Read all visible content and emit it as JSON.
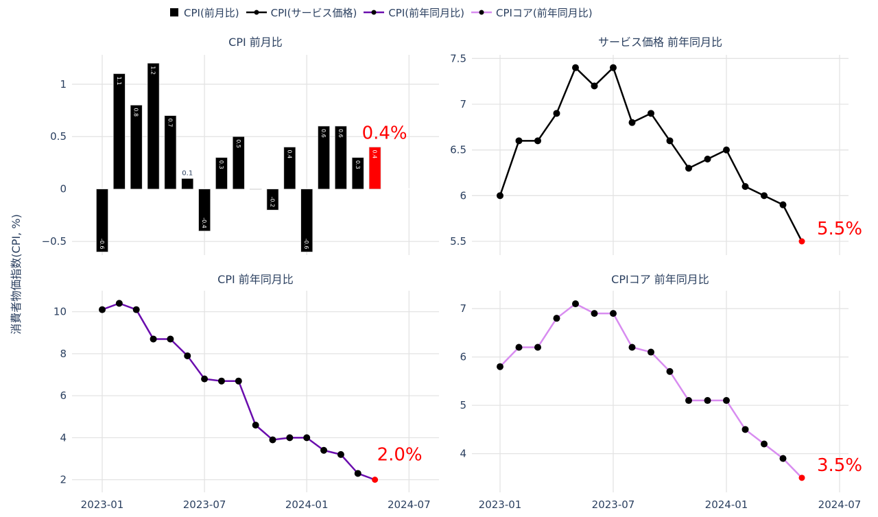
{
  "legend": [
    {
      "label": "CPI(前月比)",
      "type": "bar",
      "color": "#000000"
    },
    {
      "label": "CPI(サービス価格)",
      "type": "line",
      "color": "#000000"
    },
    {
      "label": "CPI(前年同月比)",
      "type": "line",
      "color": "#6a0dad"
    },
    {
      "label": "CPIコア(前年同月比)",
      "type": "line",
      "color": "#d88cf0"
    }
  ],
  "y_axis_title": "消費者物価指数(CPI, %)",
  "highlight_color": "#ff0000",
  "chart_data": [
    {
      "type": "bar",
      "title": "CPI 前月比",
      "xlabel": "",
      "ylabel": "消費者物価指数(CPI, %)",
      "x": [
        "2023-01",
        "2023-02",
        "2023-03",
        "2023-04",
        "2023-05",
        "2023-06",
        "2023-07",
        "2023-08",
        "2023-09",
        "2023-10",
        "2023-11",
        "2023-12",
        "2024-01",
        "2024-02",
        "2024-03",
        "2024-04",
        "2024-05"
      ],
      "values": [
        -0.6,
        1.1,
        0.8,
        1.2,
        0.7,
        0.1,
        -0.4,
        0.3,
        0.5,
        0.0,
        -0.2,
        0.4,
        -0.6,
        0.6,
        0.6,
        0.3,
        0.4
      ],
      "bar_labels": [
        "-0.6",
        "1.1",
        "0.8",
        "1.2",
        "0.7",
        "0.1",
        "-0.4",
        "0.3",
        "0.5",
        "",
        "-0.2",
        "0.4",
        "-0.6",
        "0.6",
        "0.6",
        "0.3",
        "0.4"
      ],
      "yticks": [
        -0.5,
        0,
        0.5,
        1
      ],
      "ytick_labels": [
        "−0.5",
        "0",
        "0.5",
        "1"
      ],
      "xticks": [
        "2023-01",
        "2023-07",
        "2024-01",
        "2024-07"
      ],
      "ylim": [
        -0.63,
        1.28
      ],
      "annotation": "0.4%",
      "color": "#000000",
      "last_color": "#ff0000"
    },
    {
      "type": "line",
      "title": "サービス価格 前年同月比",
      "x": [
        "2023-01",
        "2023-02",
        "2023-03",
        "2023-04",
        "2023-05",
        "2023-06",
        "2023-07",
        "2023-08",
        "2023-09",
        "2023-10",
        "2023-11",
        "2023-12",
        "2024-01",
        "2024-02",
        "2024-03",
        "2024-04",
        "2024-05"
      ],
      "values": [
        6.0,
        6.6,
        6.6,
        6.9,
        7.4,
        7.2,
        7.4,
        6.8,
        6.9,
        6.6,
        6.3,
        6.4,
        6.5,
        6.1,
        6.0,
        5.9,
        5.5
      ],
      "yticks": [
        5.5,
        6,
        6.5,
        7,
        7.5
      ],
      "ytick_labels": [
        "5.5",
        "6",
        "6.5",
        "7",
        "7.5"
      ],
      "xticks": [
        "2023-01",
        "2023-07",
        "2024-01",
        "2024-07"
      ],
      "ylim": [
        5.35,
        7.54
      ],
      "annotation": "5.5%",
      "color": "#000000"
    },
    {
      "type": "line",
      "title": "CPI 前年同月比",
      "x": [
        "2023-01",
        "2023-02",
        "2023-03",
        "2023-04",
        "2023-05",
        "2023-06",
        "2023-07",
        "2023-08",
        "2023-09",
        "2023-10",
        "2023-11",
        "2023-12",
        "2024-01",
        "2024-02",
        "2024-03",
        "2024-04",
        "2024-05"
      ],
      "values": [
        10.1,
        10.4,
        10.1,
        8.7,
        8.7,
        7.9,
        6.8,
        6.7,
        6.7,
        4.6,
        3.9,
        4.0,
        4.0,
        3.4,
        3.2,
        2.3,
        2.0
      ],
      "yticks": [
        2,
        4,
        6,
        8,
        10
      ],
      "ytick_labels": [
        "2",
        "4",
        "6",
        "8",
        "10"
      ],
      "xticks": [
        "2023-01",
        "2023-07",
        "2024-01",
        "2024-07"
      ],
      "xtick_labels": [
        "2023-01",
        "2023-07",
        "2024-01",
        "2024-07"
      ],
      "ylim": [
        1.4,
        11.0
      ],
      "annotation": "2.0%",
      "color": "#6a0dad"
    },
    {
      "type": "line",
      "title": "CPIコア 前年同月比",
      "x": [
        "2023-01",
        "2023-02",
        "2023-03",
        "2023-04",
        "2023-05",
        "2023-06",
        "2023-07",
        "2023-08",
        "2023-09",
        "2023-10",
        "2023-11",
        "2023-12",
        "2024-01",
        "2024-02",
        "2024-03",
        "2024-04",
        "2024-05"
      ],
      "values": [
        5.8,
        6.2,
        6.2,
        6.8,
        7.1,
        6.9,
        6.9,
        6.2,
        6.1,
        5.7,
        5.1,
        5.1,
        5.1,
        4.5,
        4.2,
        3.9,
        3.5
      ],
      "yticks": [
        4,
        5,
        6,
        7
      ],
      "ytick_labels": [
        "4",
        "5",
        "6",
        "7"
      ],
      "xticks": [
        "2023-01",
        "2023-07",
        "2024-01",
        "2024-07"
      ],
      "xtick_labels": [
        "2023-01",
        "2023-07",
        "2024-01",
        "2024-07"
      ],
      "ylim": [
        3.2,
        7.37
      ],
      "annotation": "3.5%",
      "color": "#d88cf0"
    }
  ]
}
